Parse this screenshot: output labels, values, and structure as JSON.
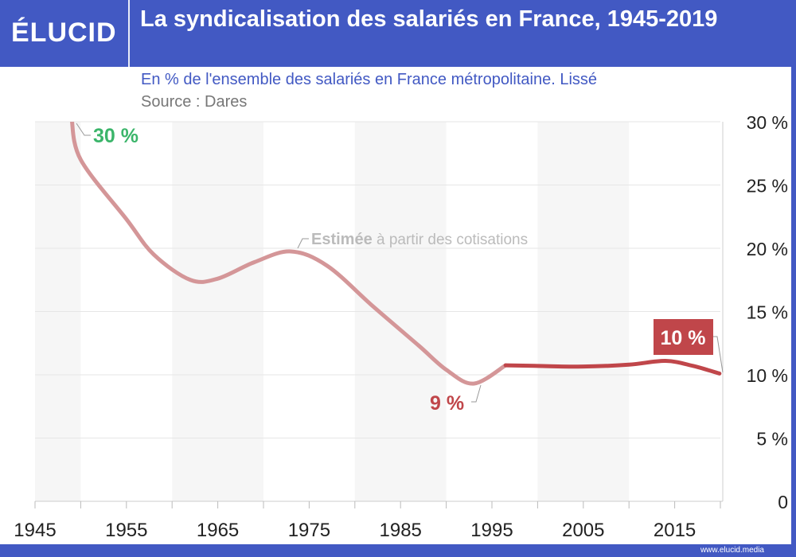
{
  "header": {
    "logo": "ÉLUCID",
    "title": "La syndicalisation des salariés en France, 1945-2019",
    "subtitle": "En % de l'ensemble des salariés en France métropolitaine. Lissé",
    "source": "Source : Dares"
  },
  "footer": {
    "url": "www.elucid.media"
  },
  "colors": {
    "brand": "#4259c3",
    "estimated": "#d49698",
    "measured": "#c0464a",
    "green": "#3bb56a"
  },
  "chart_data": {
    "type": "line",
    "title": "La syndicalisation des salariés en France, 1945-2019",
    "xlim": [
      1945,
      2020
    ],
    "ylim": [
      0,
      30
    ],
    "y_axis_side": "right",
    "grid": true,
    "x_ticks": [
      "1945",
      "1955",
      "1965",
      "1975",
      "1985",
      "1995",
      "2005",
      "2015"
    ],
    "y_ticks": [
      "0",
      "5 %",
      "10 %",
      "15 %",
      "20 %",
      "25 %",
      "30 %"
    ],
    "shaded_bands": [
      [
        1945,
        1950
      ],
      [
        1960,
        1970
      ],
      [
        1980,
        1990
      ],
      [
        2000,
        2010
      ]
    ],
    "series": [
      {
        "key": "estimated",
        "x": [
          1949,
          1950,
          1955,
          1958,
          1962,
          1965,
          1969,
          1973,
          1977,
          1982,
          1987,
          1990,
          1993,
          1996.5
        ],
        "y": [
          30.3,
          27,
          22.3,
          19.5,
          17.5,
          17.6,
          18.9,
          19.75,
          18.6,
          15.4,
          12.3,
          10.4,
          9.3,
          10.75
        ]
      },
      {
        "key": "measured",
        "x": [
          1996.5,
          2000,
          2005,
          2010,
          2014,
          2017,
          2019.9
        ],
        "y": [
          10.75,
          10.7,
          10.65,
          10.8,
          11.1,
          10.7,
          10.1
        ]
      }
    ],
    "annotations": {
      "start": "30 %",
      "estimated_bold": "Estimée",
      "estimated_rest": " à partir des cotisations",
      "low": "9 %",
      "end": "10 %"
    }
  }
}
